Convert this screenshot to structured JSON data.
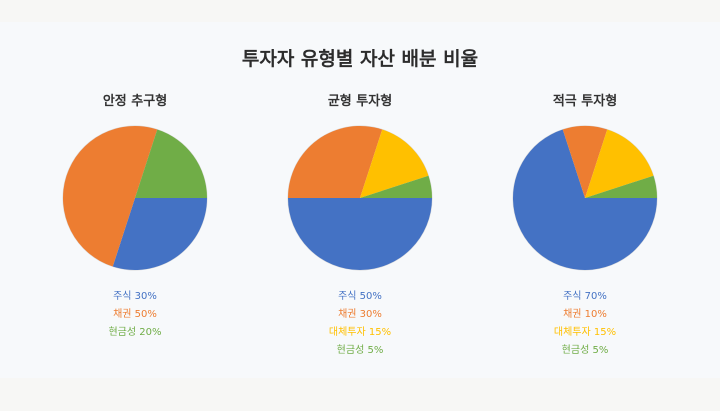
{
  "page_title": "투자자 유형별 자산 배분 비율",
  "colors": {
    "stocks": "#4472c4",
    "bonds": "#ed7d31",
    "alternatives": "#ffc000",
    "cash": "#70ad47"
  },
  "chart_data": [
    {
      "type": "pie",
      "title": "안정 추구형",
      "slices": [
        {
          "label": "주식",
          "value": 30,
          "text": "주식 30%",
          "color": "#4472c4"
        },
        {
          "label": "채권",
          "value": 50,
          "text": "채권 50%",
          "color": "#ed7d31"
        },
        {
          "label": "현금성",
          "value": 20,
          "text": "현금성 20%",
          "color": "#70ad47"
        }
      ]
    },
    {
      "type": "pie",
      "title": "균형 투자형",
      "slices": [
        {
          "label": "주식",
          "value": 50,
          "text": "주식 50%",
          "color": "#4472c4"
        },
        {
          "label": "채권",
          "value": 30,
          "text": "채권 30%",
          "color": "#ed7d31"
        },
        {
          "label": "대체투자",
          "value": 15,
          "text": "대체투자 15%",
          "color": "#ffc000"
        },
        {
          "label": "현금성",
          "value": 5,
          "text": "현금성 5%",
          "color": "#70ad47"
        }
      ]
    },
    {
      "type": "pie",
      "title": "적극 투자형",
      "slices": [
        {
          "label": "주식",
          "value": 70,
          "text": "주식 70%",
          "color": "#4472c4"
        },
        {
          "label": "채권",
          "value": 10,
          "text": "채권 10%",
          "color": "#ed7d31"
        },
        {
          "label": "대체투자",
          "value": 15,
          "text": "대체투자 15%",
          "color": "#ffc000"
        },
        {
          "label": "현금성",
          "value": 5,
          "text": "현금성 5%",
          "color": "#70ad47"
        }
      ]
    }
  ]
}
